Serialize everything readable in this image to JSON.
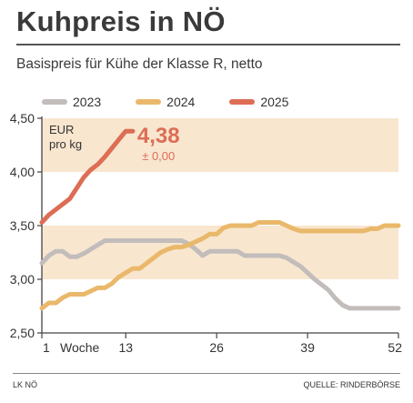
{
  "header": {
    "title": "Kuhpreis in NÖ",
    "subtitle": "Basispreis für Kühe der Klasse R, netto"
  },
  "footer": {
    "left": "LK NÖ",
    "right": "QUELLE: RINDERBÖRSE"
  },
  "colors": {
    "2023": "#c2bdbb",
    "2024": "#eab86a",
    "2025": "#dd6d55",
    "band": "#f8e6cf",
    "axis": "#444444"
  },
  "chart_data": {
    "type": "line",
    "title": "Kuhpreis in NÖ",
    "subtitle": "Basispreis für Kühe der Klasse R, netto",
    "unit_label": [
      "EUR",
      "pro kg"
    ],
    "xlabel": "Woche",
    "ylabel": "",
    "xlim": [
      1,
      52
    ],
    "ylim": [
      2.5,
      4.5
    ],
    "xticks": [
      1,
      13,
      26,
      39,
      52
    ],
    "yticks": [
      2.5,
      3.0,
      3.5,
      4.0,
      4.5
    ],
    "ytick_labels": [
      "2,50",
      "3,00",
      "3,50",
      "4,00",
      "4,50"
    ],
    "grid": false,
    "bands": [
      [
        4.0,
        4.5
      ],
      [
        3.0,
        3.5
      ]
    ],
    "legend_position": "top",
    "highlight": {
      "value": "4,38",
      "change": "± 0,00",
      "week": 13
    },
    "series": [
      {
        "name": "2023",
        "x": [
          1,
          2,
          3,
          4,
          5,
          6,
          7,
          8,
          9,
          10,
          11,
          12,
          13,
          14,
          15,
          16,
          17,
          18,
          19,
          20,
          21,
          22,
          23,
          24,
          25,
          26,
          27,
          28,
          29,
          30,
          31,
          32,
          33,
          34,
          35,
          36,
          37,
          38,
          39,
          40,
          41,
          42,
          43,
          44,
          45,
          46,
          47,
          48,
          49,
          50,
          51,
          52
        ],
        "values": [
          3.15,
          3.22,
          3.26,
          3.26,
          3.21,
          3.21,
          3.24,
          3.28,
          3.32,
          3.36,
          3.36,
          3.36,
          3.36,
          3.36,
          3.36,
          3.36,
          3.36,
          3.36,
          3.36,
          3.36,
          3.36,
          3.33,
          3.28,
          3.22,
          3.26,
          3.26,
          3.26,
          3.26,
          3.26,
          3.22,
          3.22,
          3.22,
          3.22,
          3.22,
          3.22,
          3.2,
          3.16,
          3.12,
          3.06,
          3.0,
          2.95,
          2.9,
          2.82,
          2.76,
          2.73,
          2.73,
          2.73,
          2.73,
          2.73,
          2.73,
          2.73,
          2.73
        ]
      },
      {
        "name": "2024",
        "x": [
          1,
          2,
          3,
          4,
          5,
          6,
          7,
          8,
          9,
          10,
          11,
          12,
          13,
          14,
          15,
          16,
          17,
          18,
          19,
          20,
          21,
          22,
          23,
          24,
          25,
          26,
          27,
          28,
          29,
          30,
          31,
          32,
          33,
          34,
          35,
          36,
          37,
          38,
          39,
          40,
          41,
          42,
          43,
          44,
          45,
          46,
          47,
          48,
          49,
          50,
          51,
          52
        ],
        "values": [
          2.73,
          2.78,
          2.78,
          2.83,
          2.86,
          2.86,
          2.86,
          2.89,
          2.92,
          2.92,
          2.96,
          3.02,
          3.06,
          3.1,
          3.1,
          3.15,
          3.2,
          3.25,
          3.28,
          3.3,
          3.3,
          3.32,
          3.35,
          3.38,
          3.42,
          3.42,
          3.48,
          3.5,
          3.5,
          3.5,
          3.5,
          3.53,
          3.53,
          3.53,
          3.53,
          3.5,
          3.47,
          3.45,
          3.45,
          3.45,
          3.45,
          3.45,
          3.45,
          3.45,
          3.45,
          3.45,
          3.45,
          3.47,
          3.47,
          3.5,
          3.5,
          3.5
        ]
      },
      {
        "name": "2025",
        "x": [
          1,
          2,
          3,
          4,
          5,
          6,
          7,
          8,
          9,
          10,
          11,
          12,
          13,
          14
        ],
        "values": [
          3.53,
          3.6,
          3.65,
          3.7,
          3.75,
          3.85,
          3.95,
          4.02,
          4.07,
          4.14,
          4.22,
          4.3,
          4.38,
          4.38
        ]
      }
    ]
  }
}
